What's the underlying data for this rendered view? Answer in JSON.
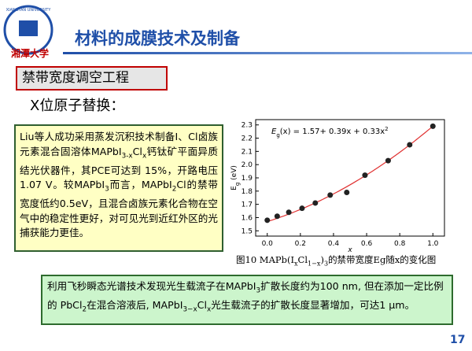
{
  "logo": {
    "text_en": "XIANGTAN UNIVERSITY",
    "text_cn": "湘潭大学"
  },
  "header": {
    "title": "材料的成膜技术及制备"
  },
  "section": {
    "title": "禁带宽度调空工程",
    "subtitle": "X位原子替换："
  },
  "left_box": {
    "runs": [
      {
        "text": "Liu等人成功采用蒸发沉积技术制备I、Cl卤族元素混合固溶体MAPbI"
      },
      {
        "text": "3-x",
        "sub": true
      },
      {
        "text": "Cl"
      },
      {
        "text": "x",
        "sub": true
      },
      {
        "text": "钙钛矿平面异质结光伏器件，其PCE可达到 15%，开路电压1.07 V。较MAPbI"
      },
      {
        "text": "3",
        "sub": true
      },
      {
        "text": "而言，MAPbI"
      },
      {
        "text": "2",
        "sub": true
      },
      {
        "text": "Cl的禁带宽度低约0.5eV，且混合卤族元素化合物在空气中的稳定性更好，对可见光到近红外区的光捕获能力更佳。"
      }
    ]
  },
  "figure": {
    "type": "scatter",
    "equation": [
      "E",
      "g",
      "(x) = 1.57+ 0.39x + 0.33x",
      "2"
    ],
    "fit": [
      1.57,
      0.39,
      0.33
    ],
    "x_label": "x",
    "y_label": [
      "E",
      "g",
      " (eV)"
    ],
    "x": [
      0,
      0.06,
      0.13,
      0.21,
      0.29,
      0.38,
      0.48,
      0.59,
      0.73,
      0.86,
      1.0
    ],
    "values": [
      1.58,
      1.61,
      1.64,
      1.67,
      1.71,
      1.77,
      1.79,
      1.92,
      2.03,
      2.15,
      2.29
    ],
    "xlim": [
      -0.07,
      1.07
    ],
    "ylim": [
      1.46,
      2.34
    ],
    "xticks": [
      {
        "value": 0,
        "label": "0.0"
      },
      {
        "value": 0.2,
        "label": "0.2"
      },
      {
        "value": 0.4,
        "label": "0.4"
      },
      {
        "value": 0.6,
        "label": "0.6"
      },
      {
        "value": 0.8,
        "label": "0.8"
      },
      {
        "value": 1,
        "label": "1.0"
      }
    ],
    "yticks": [
      1.5,
      1.6,
      1.7,
      1.8,
      1.9,
      {
        "value": 2,
        "label": "2.0"
      },
      2.1,
      2.2,
      2.3
    ],
    "marker_color": "#222222",
    "fit_color": "#e03030",
    "caption": [
      {
        "text": "图10 MAPb(I"
      },
      {
        "text": "x",
        "sub": true
      },
      {
        "text": "Cl"
      },
      {
        "text": "1−x",
        "sub": true
      },
      {
        "text": ")"
      },
      {
        "text": "3",
        "sub": true
      },
      {
        "text": "的禁带宽度Eg随x的变化图"
      }
    ]
  },
  "bottom_box": {
    "runs": [
      {
        "text": "利用飞秒瞬态光谱技术发现光生载流子在MAPbI"
      },
      {
        "text": "3",
        "sub": true
      },
      {
        "text": "扩散长度约为100 nm, 但在添加一定比例的 PbCl"
      },
      {
        "text": "2",
        "sub": true
      },
      {
        "text": "在混合溶液后, MAPbI"
      },
      {
        "text": "3−x",
        "sub": true
      },
      {
        "text": "Cl"
      },
      {
        "text": "x",
        "sub": true
      },
      {
        "text": "光生载流子的扩散长度显著增加，可达1 μm。"
      }
    ]
  },
  "page_number": "17"
}
